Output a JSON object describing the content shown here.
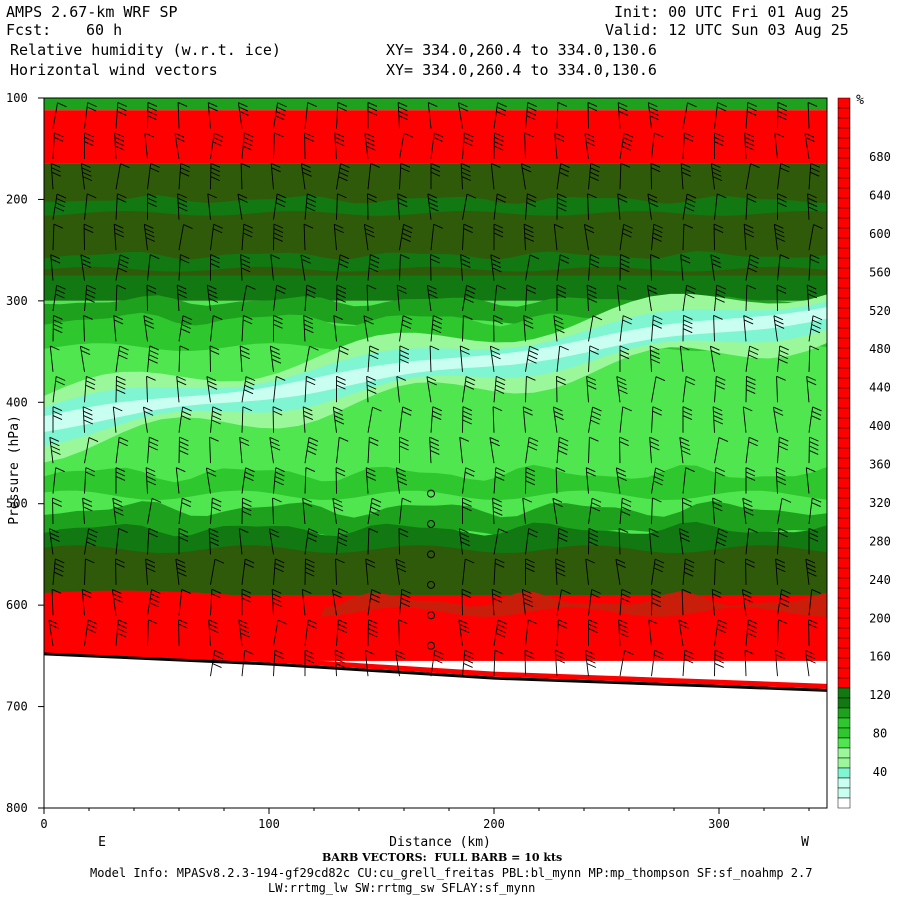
{
  "header": {
    "model": "AMPS 2.67-km WRF SP",
    "fcst_label": "Fcst:",
    "fcst_value": "60 h",
    "field1": "Relative humidity (w.r.t. ice)",
    "field2": "Horizontal wind vectors",
    "xy1": "XY= 334.0,260.4 to 334.0,130.6",
    "xy2": "XY= 334.0,260.4 to 334.0,130.6",
    "init": "Init: 00 UTC Fri 01 Aug 25",
    "valid": "Valid: 12 UTC Sun 03 Aug 25"
  },
  "footer": {
    "barb_note": "BARB VECTORS:  FULL BARB = 10 kts",
    "model_info": "Model Info: MPASv8.2.3-194-gf29cd82c CU:cu_grell_freitas PBL:bl_mynn MP:mp_thompson SF:sf_noahmp 2.7",
    "model_info2": "LW:rrtmg_lw SW:rrtmg_sw SFLAY:sf_mynn"
  },
  "chart_data": {
    "type": "heatmap",
    "subtype": "vertical cross-section with wind barbs",
    "xlabel": "Distance (km)",
    "ylabel": "Pressure (hPa)",
    "x_left_label": "E",
    "x_right_label": "W",
    "xlim": [
      0,
      348
    ],
    "ylim": [
      800,
      100
    ],
    "x_ticks": [
      0,
      100,
      200,
      300
    ],
    "y_ticks": [
      100,
      200,
      300,
      400,
      500,
      600,
      700,
      800
    ],
    "colorbar_unit": "%",
    "colorbar_ticks": [
      40,
      80,
      120,
      160,
      200,
      240,
      280,
      320,
      360,
      400,
      440,
      480,
      520,
      560,
      600,
      640,
      680
    ],
    "colors": {
      "white": "#ffffff",
      "cyan_light": "#c8fff0",
      "cyan": "#7ff5d2",
      "green_pale": "#9af79a",
      "green_light": "#50e650",
      "green": "#2ec82e",
      "green_mid": "#1ea21e",
      "green_dark": "#127812",
      "olive": "#2f5a0a",
      "red_dark": "#c81e0a",
      "red": "#ff0000"
    },
    "bands": [
      {
        "p_top": 100,
        "p_bottom": 112,
        "color": "green_mid"
      },
      {
        "p_top": 112,
        "p_bottom": 165,
        "color": "red"
      },
      {
        "p_top": 165,
        "p_bottom": 275,
        "color": "olive"
      },
      {
        "p_top": 275,
        "p_bottom": 300,
        "color": "green_dark"
      },
      {
        "p_top": 300,
        "p_bottom": 540,
        "color": "green_light"
      },
      {
        "p_top": 540,
        "p_bottom": 590,
        "color": "olive"
      },
      {
        "p_top": 590,
        "p_bottom": 655,
        "color": "red"
      }
    ],
    "moist_tongue": {
      "x_start": 0,
      "x_end": 348,
      "p_center_start": 420,
      "p_center_end": 310
    },
    "surface_pressure": [
      {
        "x": 0,
        "p": 648
      },
      {
        "x": 100,
        "p": 658
      },
      {
        "x": 200,
        "p": 672
      },
      {
        "x": 300,
        "p": 680
      },
      {
        "x": 348,
        "p": 684
      }
    ],
    "barb_columns_x_km": [
      4,
      18,
      32,
      46,
      60,
      74,
      88,
      102,
      116,
      130,
      144,
      158,
      172,
      186,
      200,
      214,
      228,
      242,
      256,
      270,
      284,
      298,
      312,
      326,
      340
    ],
    "barb_levels_hPa": [
      130,
      160,
      190,
      220,
      250,
      280,
      310,
      340,
      370,
      400,
      430,
      460,
      490,
      520,
      550,
      580,
      610,
      640,
      670
    ]
  }
}
